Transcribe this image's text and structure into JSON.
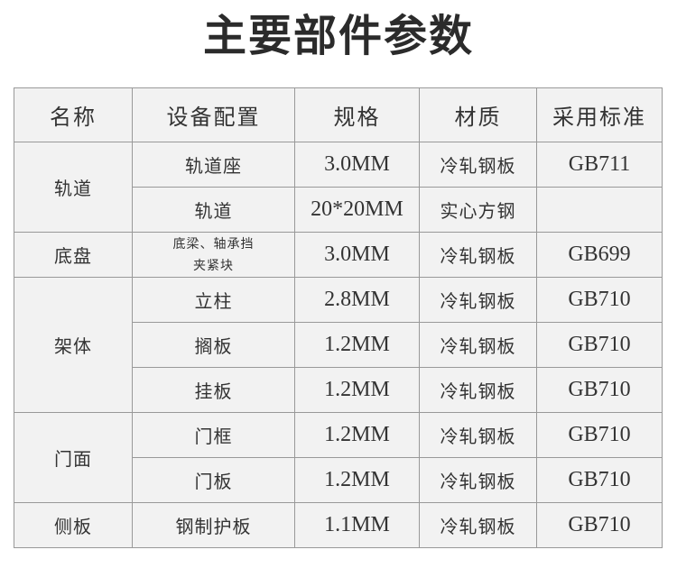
{
  "title": "主要部件参数",
  "headers": [
    "名称",
    "设备配置",
    "规格",
    "材质",
    "采用标准"
  ],
  "groups": [
    {
      "name": "轨道",
      "rows": [
        {
          "config": "轨道座",
          "spec": "3.0MM",
          "material": "冷轧钢板",
          "standard": "GB711"
        },
        {
          "config": "轨道",
          "spec": "20*20MM",
          "material": "实心方钢",
          "standard": ""
        }
      ]
    },
    {
      "name": "底盘",
      "rows": [
        {
          "config": "底梁、轴承挡\n夹紧块",
          "spec": "3.0MM",
          "material": "冷轧钢板",
          "standard": "GB699"
        }
      ]
    },
    {
      "name": "架体",
      "rows": [
        {
          "config": "立柱",
          "spec": "2.8MM",
          "material": "冷轧钢板",
          "standard": "GB710"
        },
        {
          "config": "搁板",
          "spec": "1.2MM",
          "material": "冷轧钢板",
          "standard": "GB710"
        },
        {
          "config": "挂板",
          "spec": "1.2MM",
          "material": "冷轧钢板",
          "standard": "GB710"
        }
      ]
    },
    {
      "name": "门面",
      "rows": [
        {
          "config": "门框",
          "spec": "1.2MM",
          "material": "冷轧钢板",
          "standard": "GB710"
        },
        {
          "config": "门板",
          "spec": "1.2MM",
          "material": "冷轧钢板",
          "standard": "GB710"
        }
      ]
    },
    {
      "name": "侧板",
      "rows": [
        {
          "config": "钢制护板",
          "spec": "1.1MM",
          "material": "冷轧钢板",
          "standard": "GB710"
        }
      ]
    }
  ]
}
